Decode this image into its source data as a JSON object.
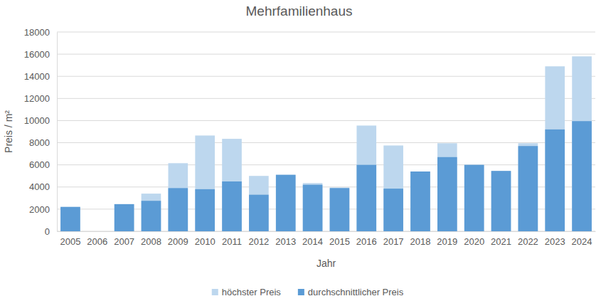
{
  "chart_data": {
    "type": "bar",
    "title": "Mehrfamilienhaus",
    "x_label": "Jahr",
    "y_label": "Preis / m²",
    "categories": [
      "2005",
      "2006",
      "2007",
      "2008",
      "2009",
      "2010",
      "2011",
      "2012",
      "2013",
      "2014",
      "2015",
      "2016",
      "2017",
      "2018",
      "2019",
      "2020",
      "2021",
      "2022",
      "2023",
      "2024"
    ],
    "series": [
      {
        "name": "höchster Preis",
        "color": "#bdd7ee",
        "values": [
          2200,
          null,
          2450,
          3400,
          6150,
          8650,
          8350,
          5000,
          5100,
          4350,
          3950,
          9550,
          7750,
          5400,
          7950,
          6000,
          5450,
          7950,
          14900,
          15800
        ]
      },
      {
        "name": "durchschnittlicher Preis",
        "color": "#5b9bd5",
        "values": [
          2200,
          null,
          2450,
          2750,
          3900,
          3800,
          4500,
          3300,
          5100,
          4200,
          3900,
          6000,
          3850,
          5400,
          6700,
          6000,
          5450,
          7700,
          9200,
          9950
        ]
      }
    ],
    "ylim": [
      0,
      18000
    ],
    "yticks": [
      0,
      2000,
      4000,
      6000,
      8000,
      10000,
      12000,
      14000,
      16000,
      18000
    ],
    "grid": true,
    "legend": "bottom"
  }
}
